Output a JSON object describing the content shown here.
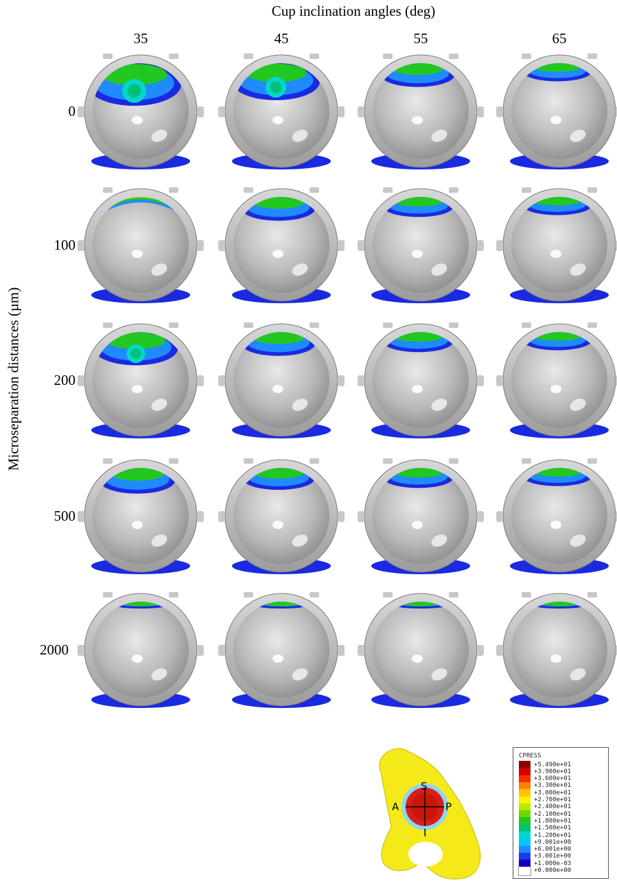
{
  "header": {
    "column_title": "Cup inclination angles (deg)",
    "row_title": "Microseparation distances (µm)"
  },
  "columns": [
    "35",
    "45",
    "55",
    "65"
  ],
  "rows": [
    "0",
    "100",
    "200",
    "500",
    "2000"
  ],
  "legend": {
    "title": "CPRESS",
    "entries": [
      {
        "value": "+5.490e+01",
        "color": "#8b0000"
      },
      {
        "value": "+3.900e+01",
        "color": "#d40000"
      },
      {
        "value": "+3.600e+01",
        "color": "#ff2a00"
      },
      {
        "value": "+3.300e+01",
        "color": "#ff7f00"
      },
      {
        "value": "+3.000e+01",
        "color": "#ffc400"
      },
      {
        "value": "+2.700e+01",
        "color": "#fff200"
      },
      {
        "value": "+2.400e+01",
        "color": "#b7ea00"
      },
      {
        "value": "+2.100e+01",
        "color": "#6fd800"
      },
      {
        "value": "+1.800e+01",
        "color": "#22c81f"
      },
      {
        "value": "+1.500e+01",
        "color": "#00c07a"
      },
      {
        "value": "+1.200e+01",
        "color": "#00d8c8"
      },
      {
        "value": "+9.001e+00",
        "color": "#00c8ff"
      },
      {
        "value": "+6.001e+00",
        "color": "#1f8bff"
      },
      {
        "value": "+3.001e+00",
        "color": "#1a3ce8"
      },
      {
        "value": "+1.000e-03",
        "color": "#1200c0"
      },
      {
        "value": "+0.000e+00",
        "color": "#ffffff"
      }
    ]
  },
  "orientation": {
    "superior": "S",
    "inferior": "I",
    "anterior": "A",
    "posterior": "P"
  },
  "contact_levels": [
    [
      0.95,
      0.8,
      0.45,
      0.3
    ],
    [
      0.8,
      0.45,
      0.35,
      0.3
    ],
    [
      0.7,
      0.45,
      0.35,
      0.3
    ],
    [
      0.5,
      0.4,
      0.35,
      0.3
    ],
    [
      0.0,
      0.0,
      0.0,
      0.0
    ]
  ]
}
